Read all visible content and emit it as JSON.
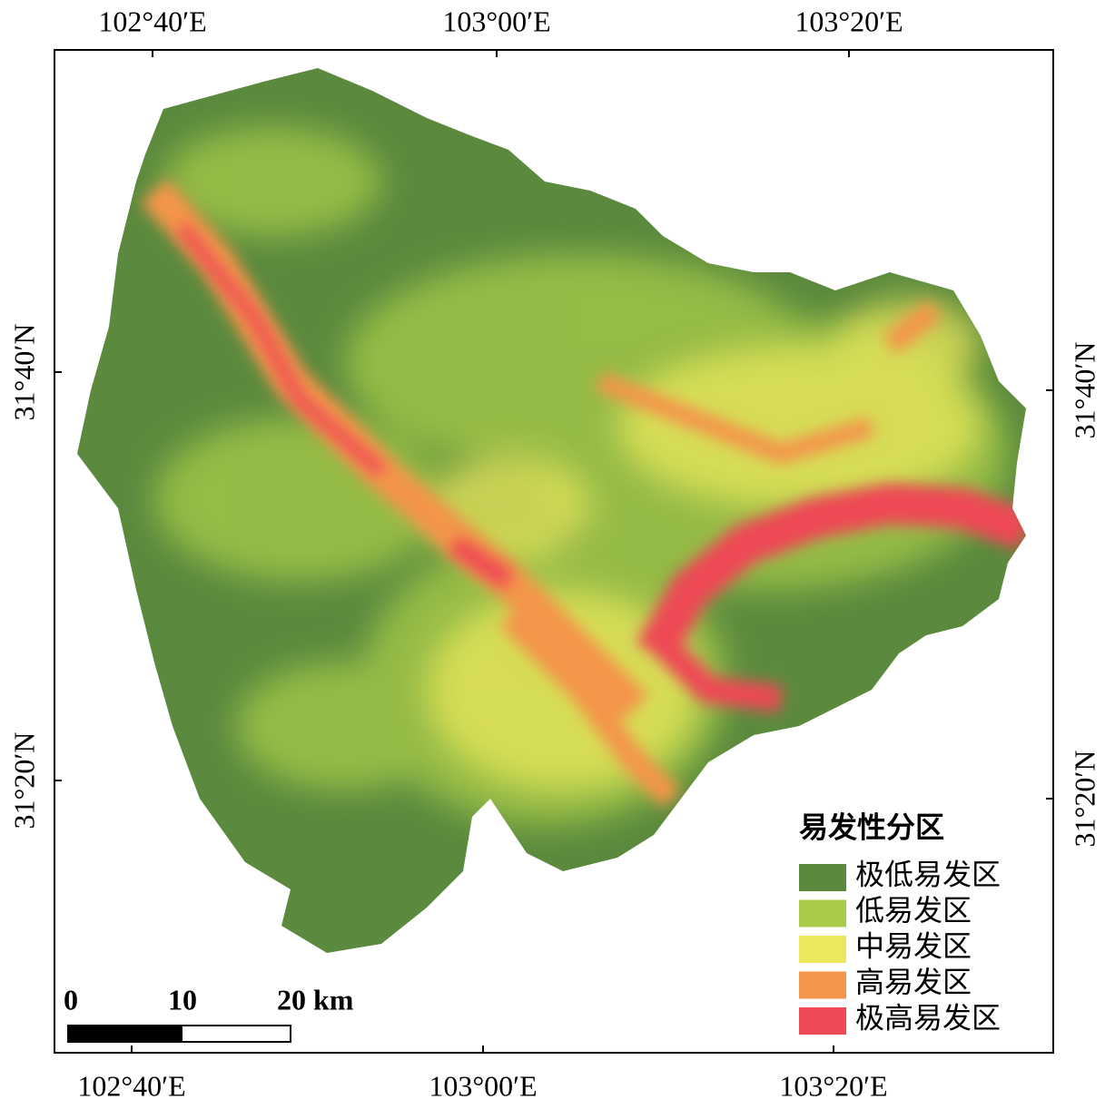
{
  "map": {
    "top_labels": [
      "102°40′E",
      "103°00′E",
      "103°20′E"
    ],
    "bottom_labels": [
      "102°40′E",
      "103°00′E",
      "103°20′E"
    ],
    "left_labels": [
      "31°40′N",
      "31°20′N"
    ],
    "right_labels": [
      "31°40′N",
      "31°20′N"
    ],
    "legend": {
      "title": "易发性分区",
      "items": [
        {
          "label": "极低易发区",
          "color": "#5b8a3e"
        },
        {
          "label": "低易发区",
          "color": "#a8cc4a"
        },
        {
          "label": "中易发区",
          "color": "#ece85c"
        },
        {
          "label": "高易发区",
          "color": "#f4954a"
        },
        {
          "label": "极高易发区",
          "color": "#ee4a55"
        }
      ]
    },
    "scale_bar": {
      "labels": [
        "0",
        "10",
        "20 km"
      ]
    }
  }
}
